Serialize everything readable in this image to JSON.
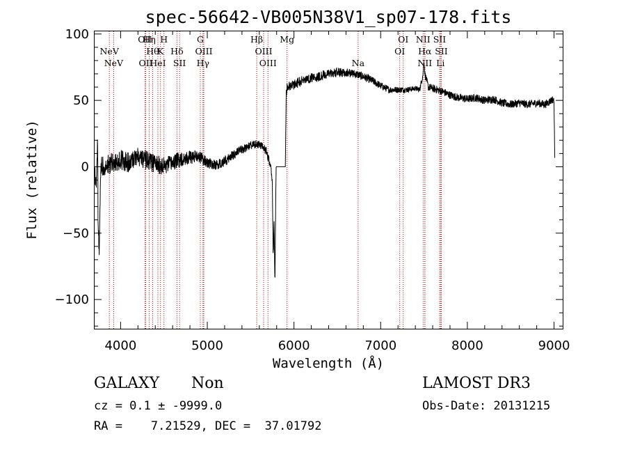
{
  "chart_data": {
    "type": "line",
    "title": "spec-56642-VB005N38V1_sp07-178.fits",
    "xlabel": "Wavelength (Å)",
    "ylabel": "Flux (relative)",
    "xlim": [
      3700,
      9100
    ],
    "ylim": [
      -122,
      102
    ],
    "xticks": [
      4000,
      5000,
      6000,
      7000,
      8000,
      9000
    ],
    "yticks": [
      100,
      50,
      0,
      -50,
      -100
    ],
    "series": [
      {
        "name": "spectrum",
        "anchors": [
          [
            3700,
            0
          ],
          [
            3720,
            -20
          ],
          [
            3735,
            20
          ],
          [
            3740,
            -50
          ],
          [
            3755,
            -60
          ],
          [
            3770,
            0
          ],
          [
            3800,
            0
          ],
          [
            3900,
            3
          ],
          [
            4000,
            5
          ],
          [
            4100,
            3
          ],
          [
            4200,
            8
          ],
          [
            4300,
            5
          ],
          [
            4400,
            2
          ],
          [
            4500,
            0
          ],
          [
            4600,
            3
          ],
          [
            4700,
            6
          ],
          [
            4800,
            7
          ],
          [
            4900,
            8
          ],
          [
            5000,
            3
          ],
          [
            5100,
            1
          ],
          [
            5200,
            4
          ],
          [
            5300,
            9
          ],
          [
            5400,
            13
          ],
          [
            5500,
            16
          ],
          [
            5600,
            17
          ],
          [
            5680,
            12
          ],
          [
            5710,
            5
          ],
          [
            5730,
            1
          ],
          [
            5750,
            -10
          ],
          [
            5760,
            -70
          ],
          [
            5770,
            -40
          ],
          [
            5780,
            -90
          ],
          [
            5790,
            -20
          ],
          [
            5795,
            0
          ],
          [
            5800,
            0
          ],
          [
            5850,
            0
          ],
          [
            5900,
            0
          ],
          [
            5910,
            55
          ],
          [
            5920,
            60
          ],
          [
            6000,
            62
          ],
          [
            6100,
            65
          ],
          [
            6200,
            67
          ],
          [
            6300,
            68
          ],
          [
            6400,
            70
          ],
          [
            6500,
            71
          ],
          [
            6600,
            71
          ],
          [
            6700,
            70
          ],
          [
            6800,
            68
          ],
          [
            6900,
            65
          ],
          [
            7000,
            61
          ],
          [
            7100,
            58
          ],
          [
            7200,
            58
          ],
          [
            7300,
            58
          ],
          [
            7400,
            59
          ],
          [
            7450,
            58
          ],
          [
            7490,
            70
          ],
          [
            7500,
            80
          ],
          [
            7510,
            70
          ],
          [
            7550,
            60
          ],
          [
            7600,
            59
          ],
          [
            7700,
            57
          ],
          [
            7800,
            54
          ],
          [
            7900,
            52
          ],
          [
            8000,
            51
          ],
          [
            8100,
            52
          ],
          [
            8200,
            50
          ],
          [
            8300,
            51
          ],
          [
            8400,
            48
          ],
          [
            8500,
            47
          ],
          [
            8600,
            48
          ],
          [
            8700,
            47
          ],
          [
            8800,
            48
          ],
          [
            8900,
            47
          ],
          [
            8990,
            51
          ],
          [
            9000,
            48
          ],
          [
            9010,
            0
          ]
        ],
        "noise_scale": [
          [
            3700,
            8
          ],
          [
            4500,
            7
          ],
          [
            5000,
            4
          ],
          [
            5700,
            3
          ],
          [
            5900,
            3
          ],
          [
            6000,
            4
          ],
          [
            6900,
            3
          ],
          [
            7400,
            2
          ],
          [
            7600,
            3
          ],
          [
            8500,
            3
          ],
          [
            9000,
            3
          ]
        ]
      }
    ],
    "lines": [
      {
        "label": "NeV",
        "x": 3870,
        "tier": 1
      },
      {
        "label": "NeV",
        "x": 3920,
        "tier": 0
      },
      {
        "label": "OII",
        "x": 4280,
        "tier": 2
      },
      {
        "label": "OII",
        "x": 4290,
        "tier": 0
      },
      {
        "label": "Hη",
        "x": 4330,
        "tier": 2
      },
      {
        "label": "Hθ",
        "x": 4370,
        "tier": 1
      },
      {
        "label": "HeI",
        "x": 4430,
        "tier": 0
      },
      {
        "label": "H",
        "x": 4500,
        "tier": 2
      },
      {
        "label": "K",
        "x": 4460,
        "tier": 1
      },
      {
        "label": "Hδ",
        "x": 4650,
        "tier": 1
      },
      {
        "label": "SII",
        "x": 4680,
        "tier": 0
      },
      {
        "label": "G",
        "x": 4920,
        "tier": 2
      },
      {
        "label": "OIII",
        "x": 4960,
        "tier": 1
      },
      {
        "label": "Hγ",
        "x": 4950,
        "tier": 0
      },
      {
        "label": "Hβ",
        "x": 5570,
        "tier": 2
      },
      {
        "label": "OIII",
        "x": 5650,
        "tier": 1
      },
      {
        "label": "OIII",
        "x": 5700,
        "tier": 0
      },
      {
        "label": "Mg",
        "x": 5920,
        "tier": 2
      },
      {
        "label": "Na",
        "x": 6740,
        "tier": 0
      },
      {
        "label": "OI",
        "x": 7260,
        "tier": 2
      },
      {
        "label": "OI",
        "x": 7220,
        "tier": 1
      },
      {
        "label": "NII",
        "x": 7490,
        "tier": 2
      },
      {
        "label": "Hα",
        "x": 7510,
        "tier": 1
      },
      {
        "label": "NII",
        "x": 7510,
        "tier": 0
      },
      {
        "label": "SII",
        "x": 7680,
        "tier": 2
      },
      {
        "label": "SII",
        "x": 7700,
        "tier": 1
      },
      {
        "label": "Li",
        "x": 7690,
        "tier": 0
      }
    ],
    "colors": {
      "spectrum": "#000000",
      "line_marker": "#cc0000",
      "axes": "#000000"
    }
  },
  "info": {
    "object_class": "GALAXY",
    "subclass": "Non",
    "survey": "LAMOST DR3",
    "cz": "cz = 0.1 ± -9999.0",
    "obs_date": "Obs-Date: 20131215",
    "radec": "RA =    7.21529, DEC =  37.01792"
  }
}
